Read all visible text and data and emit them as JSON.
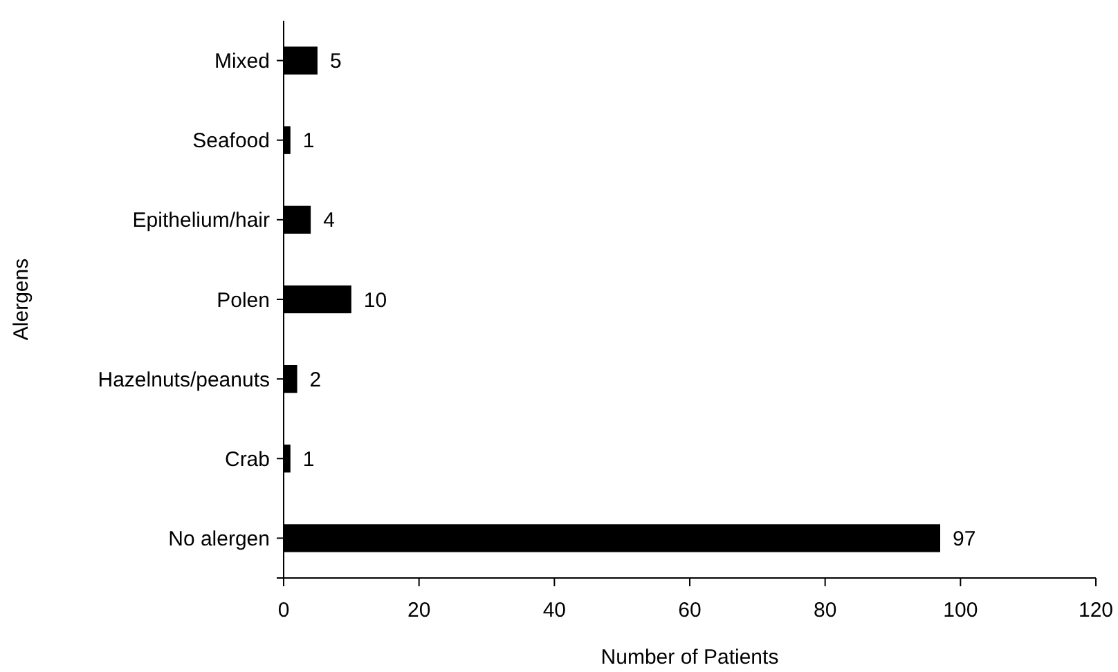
{
  "chart_data": {
    "type": "bar",
    "orientation": "horizontal",
    "xlabel": "Number of Patients",
    "ylabel": "Alergens",
    "categories": [
      "Mixed",
      "Seafood",
      "Epithelium/hair",
      "Polen",
      "Hazelnuts/peanuts",
      "Crab",
      "No alergen"
    ],
    "values": [
      5,
      1,
      4,
      10,
      2,
      1,
      97
    ],
    "color": "#000000",
    "xlim": [
      0,
      120
    ],
    "xticks": [
      0,
      20,
      40,
      60,
      80,
      100,
      120
    ],
    "grid": false,
    "data_labels": true
  }
}
